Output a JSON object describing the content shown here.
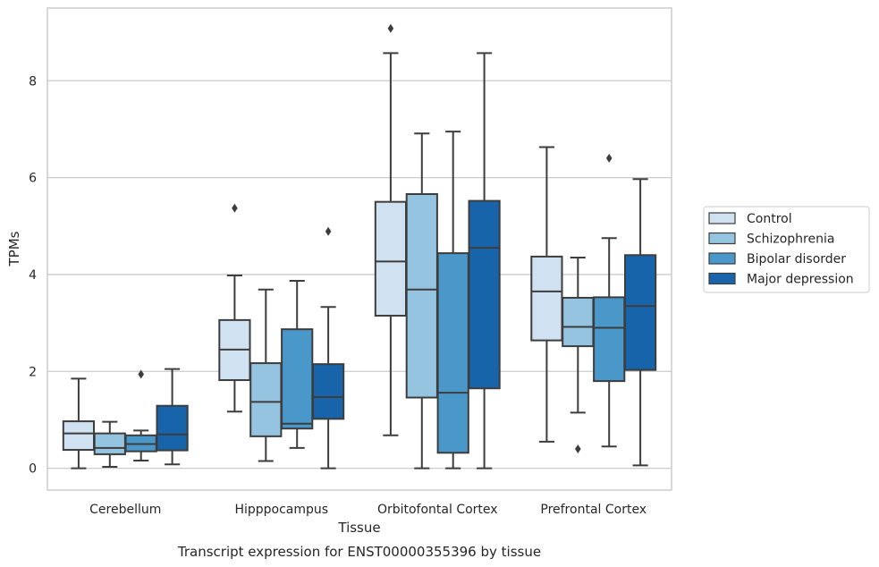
{
  "chart_data": {
    "type": "box",
    "caption": "Transcript expression for ENST00000355396 by tissue",
    "xlabel": "Tissue",
    "ylabel": "TPMs",
    "ylim": [
      -0.45,
      9.5
    ],
    "yticks": [
      0,
      2,
      4,
      6,
      8
    ],
    "grid": "horizontal",
    "legend_position": "right",
    "categories": [
      "Cerebellum",
      "Hipppocampus",
      "Orbitofontal Cortex",
      "Prefrontal Cortex"
    ],
    "series": [
      {
        "name": "Control",
        "color": "#d0e1f2",
        "boxes": [
          {
            "whislo": 0.0,
            "q1": 0.38,
            "med": 0.72,
            "q3": 0.97,
            "whishi": 1.85,
            "fliers": []
          },
          {
            "whislo": 1.17,
            "q1": 1.82,
            "med": 2.45,
            "q3": 3.06,
            "whishi": 3.98,
            "fliers": [
              5.37
            ]
          },
          {
            "whislo": 0.68,
            "q1": 3.15,
            "med": 4.27,
            "q3": 5.5,
            "whishi": 8.57,
            "fliers": [
              9.08
            ]
          },
          {
            "whislo": 0.55,
            "q1": 2.64,
            "med": 3.65,
            "q3": 4.37,
            "whishi": 6.63,
            "fliers": []
          }
        ]
      },
      {
        "name": "Schizophrenia",
        "color": "#94c4df",
        "boxes": [
          {
            "whislo": 0.03,
            "q1": 0.29,
            "med": 0.42,
            "q3": 0.72,
            "whishi": 0.96,
            "fliers": []
          },
          {
            "whislo": 0.15,
            "q1": 0.66,
            "med": 1.37,
            "q3": 2.17,
            "whishi": 3.69,
            "fliers": []
          },
          {
            "whislo": 0.0,
            "q1": 1.46,
            "med": 3.69,
            "q3": 5.66,
            "whishi": 6.91,
            "fliers": []
          },
          {
            "whislo": 1.15,
            "q1": 2.52,
            "med": 2.92,
            "q3": 3.52,
            "whishi": 4.35,
            "fliers": [
              0.4
            ]
          }
        ]
      },
      {
        "name": "Bipolar disorder",
        "color": "#4a98c9",
        "boxes": [
          {
            "whislo": 0.16,
            "q1": 0.35,
            "med": 0.5,
            "q3": 0.68,
            "whishi": 0.78,
            "fliers": [
              1.94
            ]
          },
          {
            "whislo": 0.42,
            "q1": 0.82,
            "med": 0.92,
            "q3": 2.87,
            "whishi": 3.87,
            "fliers": []
          },
          {
            "whislo": 0.0,
            "q1": 0.32,
            "med": 1.56,
            "q3": 4.44,
            "whishi": 6.95,
            "fliers": []
          },
          {
            "whislo": 0.45,
            "q1": 1.8,
            "med": 2.9,
            "q3": 3.53,
            "whishi": 4.75,
            "fliers": [
              6.4
            ]
          }
        ]
      },
      {
        "name": "Major depression",
        "color": "#1764ab",
        "boxes": [
          {
            "whislo": 0.08,
            "q1": 0.37,
            "med": 0.7,
            "q3": 1.29,
            "whishi": 2.05,
            "fliers": []
          },
          {
            "whislo": 0.0,
            "q1": 1.02,
            "med": 1.47,
            "q3": 2.15,
            "whishi": 3.33,
            "fliers": [
              4.89
            ]
          },
          {
            "whislo": 0.0,
            "q1": 1.65,
            "med": 4.55,
            "q3": 5.52,
            "whishi": 8.57,
            "fliers": []
          },
          {
            "whislo": 0.06,
            "q1": 2.03,
            "med": 3.35,
            "q3": 4.4,
            "whishi": 5.97,
            "fliers": []
          }
        ]
      }
    ]
  }
}
